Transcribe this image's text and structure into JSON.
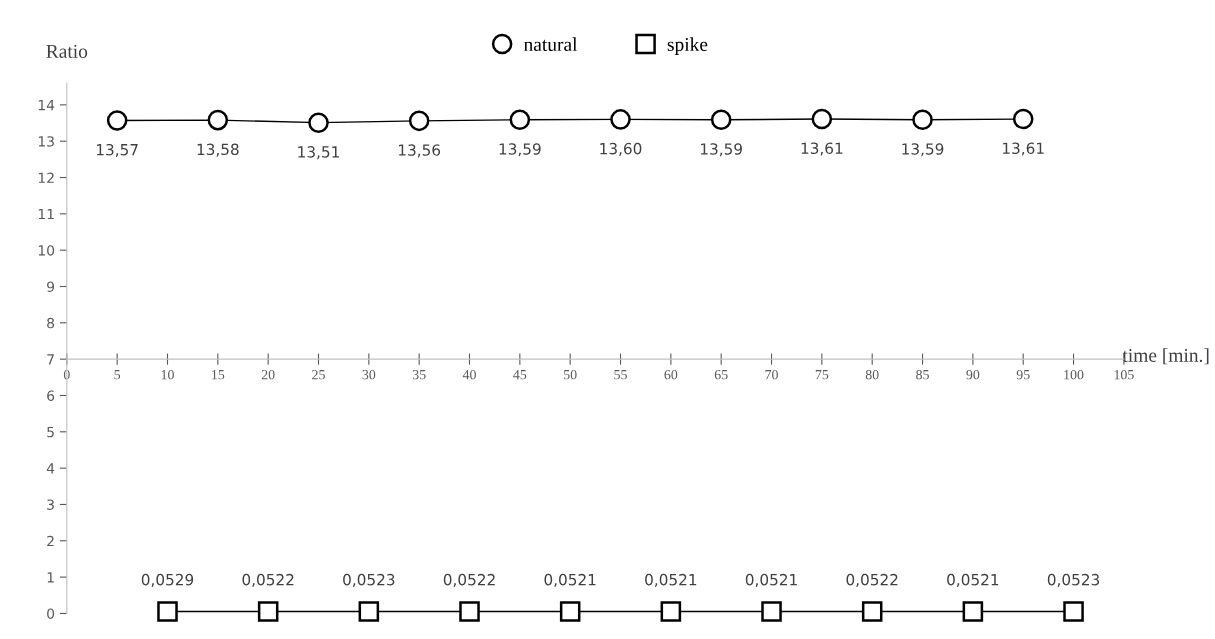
{
  "chart_data": {
    "type": "line",
    "xlabel": "time [min.]",
    "ylabel": "Ratio",
    "xlim": [
      0,
      105
    ],
    "xticks": [
      0,
      5,
      10,
      15,
      20,
      25,
      30,
      35,
      40,
      45,
      50,
      55,
      60,
      65,
      70,
      75,
      80,
      85,
      90,
      95,
      100,
      105
    ],
    "ylim": [
      0,
      14.6
    ],
    "yticks": [
      0,
      1,
      2,
      3,
      4,
      5,
      6,
      7,
      8,
      9,
      10,
      11,
      12,
      13,
      14
    ],
    "grid": false,
    "legend": "top",
    "series": [
      {
        "name": "natural",
        "color": "#000000",
        "marker": "circle",
        "x": [
          5,
          15,
          25,
          35,
          45,
          55,
          65,
          75,
          85,
          95
        ],
        "values": [
          13.57,
          13.58,
          13.51,
          13.56,
          13.59,
          13.6,
          13.59,
          13.61,
          13.59,
          13.61
        ],
        "value_labels": [
          "13,57",
          "13,58",
          "13,51",
          "13,56",
          "13,59",
          "13,60",
          "13,59",
          "13,61",
          "13,59",
          "13,61"
        ]
      },
      {
        "name": "spike",
        "color": "#000000",
        "marker": "square",
        "x": [
          10,
          20,
          30,
          40,
          50,
          60,
          70,
          80,
          90,
          100
        ],
        "values": [
          0.0529,
          0.0522,
          0.0523,
          0.0522,
          0.0521,
          0.0521,
          0.0521,
          0.0522,
          0.0521,
          0.0523
        ],
        "value_labels": [
          "0,0529",
          "0,0522",
          "0,0523",
          "0,0522",
          "0,0521",
          "0,0521",
          "0,0521",
          "0,0522",
          "0,0521",
          "0,0523"
        ]
      }
    ]
  }
}
